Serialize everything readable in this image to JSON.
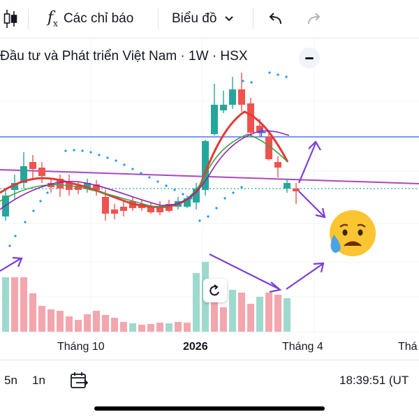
{
  "toolbar": {
    "indicators_label": "Các chỉ báo",
    "chart_type_label": "Biểu đồ"
  },
  "chart": {
    "title": "Đầu tư và Phát triển Việt Nam · 1W · HSX",
    "x_labels": [
      "Tháng 10",
      "2026",
      "Tháng 4",
      "Thá"
    ],
    "colors": {
      "up": "#26a69a",
      "down": "#ef5350",
      "ma_fast": "#e53935",
      "ma_mid": "#43a047",
      "ma_slow": "#8e24aa",
      "long_ma": "#ab47bc",
      "hline": "#2962ff",
      "parabolic_sar": "#2196f3",
      "annotation_arrow": "#7b3fd6"
    },
    "annotation_emoji": "sad-sweat-face"
  },
  "bottom_bar": {
    "range_5y": "5n",
    "range_1y": "1n",
    "time": "18:39:51 (UT"
  }
}
